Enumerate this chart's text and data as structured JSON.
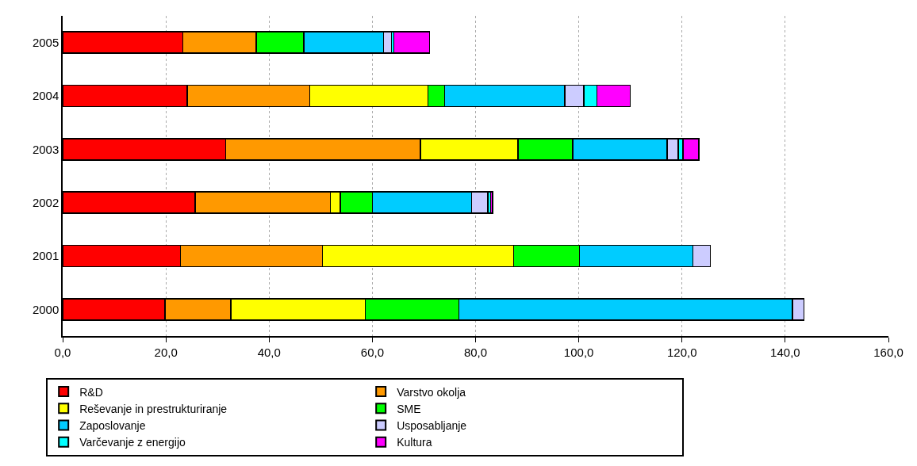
{
  "chart_data": {
    "type": "bar",
    "orientation": "horizontal",
    "stacked": true,
    "categories": [
      "2005",
      "2004",
      "2003",
      "2002",
      "2001",
      "2000"
    ],
    "series": [
      {
        "name": "R&D",
        "color": "#ff0000",
        "values": [
          23.3,
          24.1,
          31.6,
          25.7,
          22.8,
          19.8
        ]
      },
      {
        "name": "Varstvo okolja",
        "color": "#ff9900",
        "values": [
          14.2,
          23.8,
          37.7,
          26.2,
          27.5,
          12.8
        ]
      },
      {
        "name": "Reševanje in prestrukturiranje",
        "color": "#ffff00",
        "values": [
          null,
          22.9,
          18.9,
          1.9,
          37.1,
          26.0
        ]
      },
      {
        "name": "SME",
        "color": "#00ff00",
        "values": [
          9.2,
          3.2,
          10.6,
          6.2,
          12.7,
          18.2
        ]
      },
      {
        "name": "Zaposlovanje",
        "color": "#00ccff",
        "values": [
          15.5,
          23.3,
          18.3,
          19.2,
          22.0,
          64.6
        ]
      },
      {
        "name": "Usposabljanje",
        "color": "#ccccff",
        "values": [
          1.5,
          3.7,
          2.2,
          3.2,
          3.4,
          2.2
        ]
      },
      {
        "name": "Varčevanje z energijo",
        "color": "#00ffff",
        "values": [
          0.5,
          2.5,
          0.9,
          0.5,
          null,
          null
        ]
      },
      {
        "name": "Kultura",
        "color": "#ff00ff",
        "values": [
          6.9,
          6.5,
          3.1,
          0.4,
          null,
          null
        ]
      }
    ],
    "xlim": [
      0,
      160
    ],
    "xticks": [
      {
        "value": 0,
        "label": "0,0"
      },
      {
        "value": 20,
        "label": "20,0"
      },
      {
        "value": 40,
        "label": "40,0"
      },
      {
        "value": 60,
        "label": "60,0"
      },
      {
        "value": 80,
        "label": "80,0"
      },
      {
        "value": 100,
        "label": "100,0"
      },
      {
        "value": 120,
        "label": "120,0"
      },
      {
        "value": 140,
        "label": "140,0"
      },
      {
        "value": 160,
        "label": "160,0"
      }
    ],
    "grid": "x",
    "legend": "bottom"
  }
}
